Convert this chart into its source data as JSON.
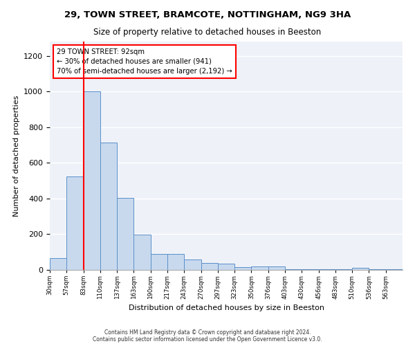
{
  "title_line1": "29, TOWN STREET, BRAMCOTE, NOTTINGHAM, NG9 3HA",
  "title_line2": "Size of property relative to detached houses in Beeston",
  "xlabel": "Distribution of detached houses by size in Beeston",
  "ylabel": "Number of detached properties",
  "bar_color": "#c8d9ee",
  "bar_edge_color": "#5b8fc9",
  "redline_bin": 2,
  "annotation_text": "29 TOWN STREET: 92sqm\n← 30% of detached houses are smaller (941)\n70% of semi-detached houses are larger (2,192) →",
  "categories": [
    "30sqm",
    "57sqm",
    "83sqm",
    "110sqm",
    "137sqm",
    "163sqm",
    "190sqm",
    "217sqm",
    "243sqm",
    "270sqm",
    "297sqm",
    "323sqm",
    "350sqm",
    "376sqm",
    "403sqm",
    "430sqm",
    "456sqm",
    "483sqm",
    "510sqm",
    "536sqm",
    "563sqm"
  ],
  "values": [
    65,
    525,
    1000,
    715,
    405,
    197,
    90,
    90,
    57,
    40,
    33,
    17,
    20,
    18,
    5,
    5,
    5,
    5,
    10,
    5,
    5
  ],
  "ylim": [
    0,
    1280
  ],
  "yticks": [
    0,
    200,
    400,
    600,
    800,
    1000,
    1200
  ],
  "footnote": "Contains HM Land Registry data © Crown copyright and database right 2024.\nContains public sector information licensed under the Open Government Licence v3.0.",
  "background_color": "#eef2f8"
}
